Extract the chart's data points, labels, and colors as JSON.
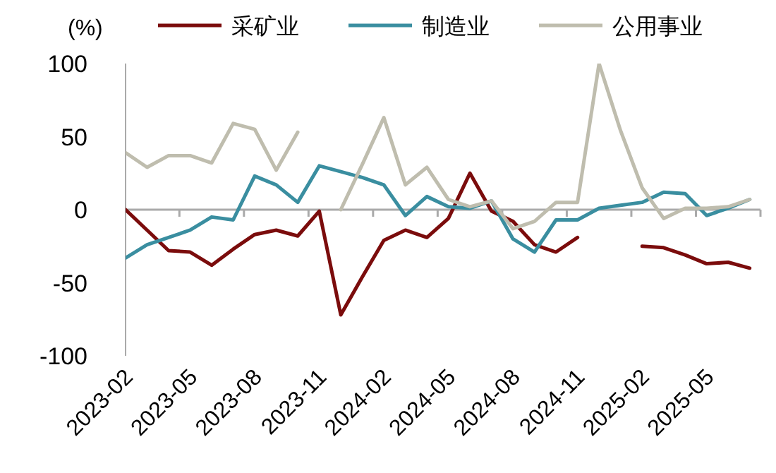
{
  "chart_data": {
    "type": "line",
    "ylabel": "(%)",
    "categories": [
      "2023-02",
      null,
      null,
      "2023-05",
      null,
      null,
      "2023-08",
      null,
      null,
      "2023-11",
      null,
      null,
      "2024-02",
      null,
      null,
      "2024-05",
      null,
      null,
      "2024-08",
      null,
      null,
      "2024-11",
      null,
      null,
      "2025-02",
      null,
      null,
      "2025-05",
      null,
      null
    ],
    "ylim": [
      -100,
      100
    ],
    "yticks": [
      100,
      50,
      0,
      {
        "value": -50,
        "label": "-50"
      },
      {
        "value": -100,
        "label": "-100"
      }
    ],
    "legend": "top",
    "marker": "none",
    "line_style": "solid",
    "series": [
      {
        "name": "采矿业",
        "color": "#7b0c0c",
        "values": [
          0,
          -14,
          -28,
          -29,
          -38,
          -27,
          -17,
          -14,
          -18,
          -1,
          -72,
          -46,
          -21,
          -14,
          -19,
          -6,
          25,
          -1,
          -8,
          -24,
          -29,
          -19,
          null,
          null,
          -25,
          -26,
          -31,
          -37,
          -36,
          -40
        ]
      },
      {
        "name": "制造业",
        "color": "#3a8ea0",
        "values": [
          -33,
          -24,
          -19,
          -14,
          -5,
          -7,
          23,
          17,
          5,
          30,
          26,
          22,
          17,
          -4,
          9,
          2,
          1,
          6,
          -20,
          -29,
          -7,
          -7,
          1,
          3,
          5,
          12,
          11,
          -4,
          1,
          7
        ]
      },
      {
        "name": "公用事业",
        "color": "#bfbdae",
        "values": [
          39,
          29,
          37,
          37,
          32,
          59,
          55,
          27,
          53,
          null,
          0,
          31,
          63,
          17,
          29,
          7,
          2,
          6,
          -13,
          -8,
          5,
          5,
          100,
          54,
          15,
          -6,
          1,
          1,
          2,
          7
        ]
      }
    ]
  }
}
